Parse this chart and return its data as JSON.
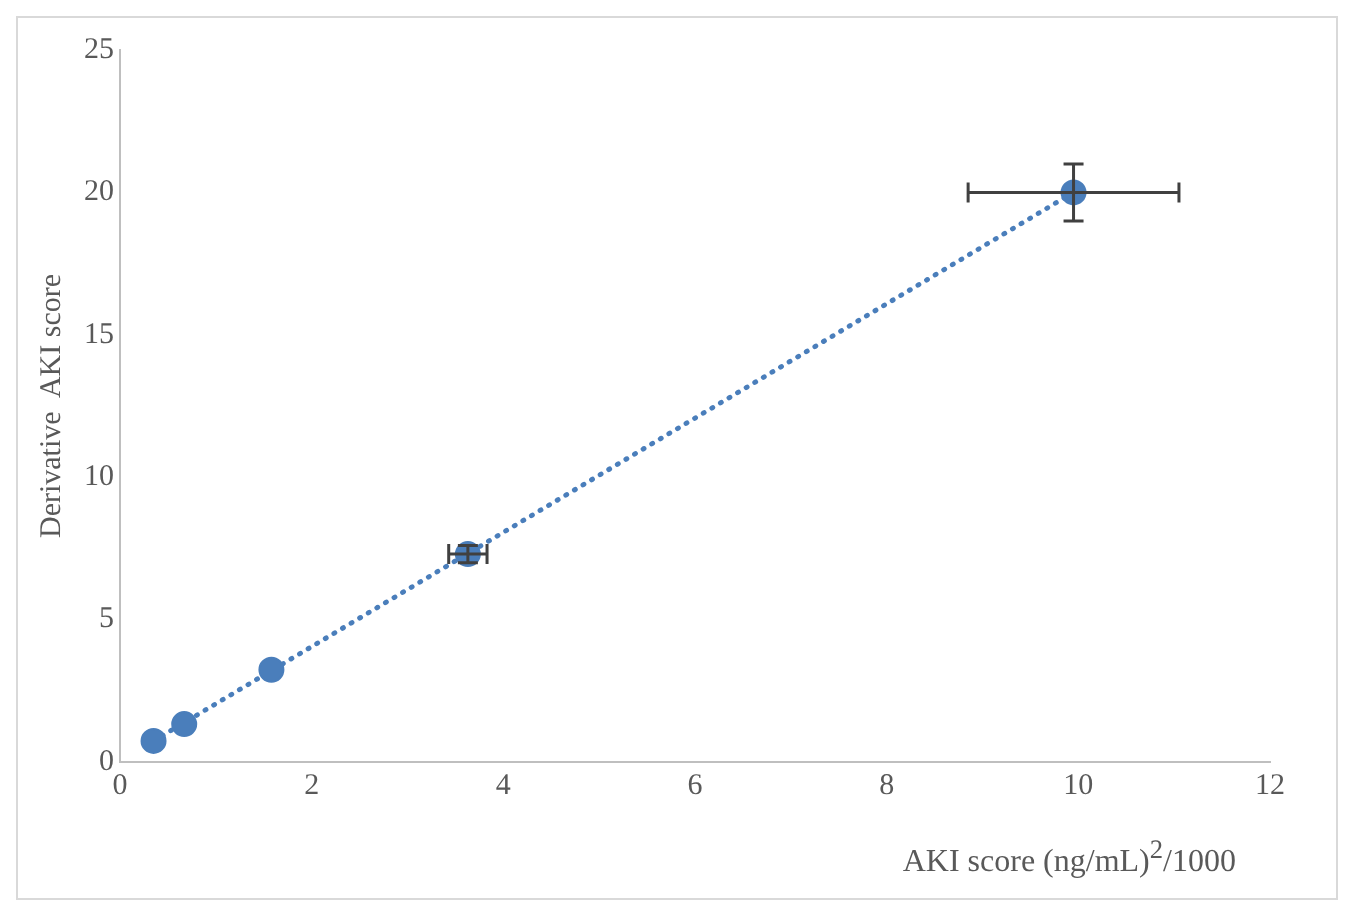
{
  "chart_data": {
    "type": "scatter",
    "xlabel": "AKI score (ng/mL)$^{2}$/1000",
    "ylabel": "Derivative  AKI score",
    "xlim": [
      0,
      12
    ],
    "xticks": [
      0,
      2,
      4,
      6,
      8,
      10,
      12
    ],
    "ylim": [
      0,
      25
    ],
    "yticks": [
      0,
      5,
      10,
      15,
      20,
      25
    ],
    "grid": false,
    "legend": false,
    "marker": "circle",
    "series": [
      {
        "color": "#4a7ebb",
        "x": [
          0.35,
          0.67,
          1.58,
          3.63,
          9.95
        ],
        "values": [
          0.74,
          1.33,
          3.24,
          7.3,
          20.0
        ],
        "errors": [
          null,
          null,
          null,
          0.3,
          1.0
        ],
        "xerrors": [
          null,
          null,
          null,
          0.2,
          1.1
        ]
      },
      {
        "type": "line",
        "color": "#4a7ebb",
        "line_style": "dotted",
        "marker": "none",
        "x": [
          0.35,
          9.95
        ],
        "values": [
          0.74,
          20.0
        ]
      }
    ]
  }
}
